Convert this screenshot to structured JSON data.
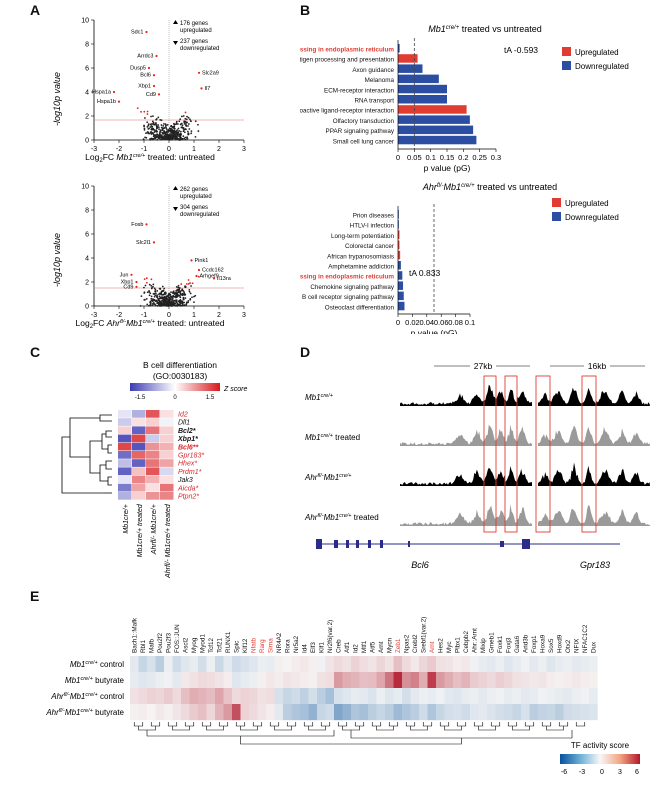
{
  "panels": {
    "A": {
      "letter": "A",
      "top": {
        "ylabel": "-log10p value",
        "xlabel_pre": "Log",
        "xlabel_sub": "2",
        "xlabel_mid": "FC ",
        "xlabel_gene": "Mb1",
        "xlabel_sup": "cre/+",
        "xlabel_post": " treated: untreated",
        "up_text": [
          "176 genes",
          "upregulated"
        ],
        "down_text": [
          "237 genes",
          "downregulated"
        ],
        "genes": [
          "Sdc1",
          "Arrdc3",
          "Dusp5",
          "Bcl6",
          "Xbp1",
          "Cd9",
          "Hspa1a",
          "Hspa1b",
          "Slc2a9",
          "Il7"
        ],
        "xticks": [
          "-3",
          "-2",
          "-1",
          "0",
          "1",
          "2",
          "3"
        ],
        "yticks": [
          "0",
          "2",
          "4",
          "6",
          "8",
          "10"
        ]
      },
      "bottom": {
        "ylabel": "-log10p value",
        "xlabel_pre": "Log",
        "xlabel_sub": "2",
        "xlabel_mid": "FC ",
        "xlabel_gene": "Ahr",
        "xlabel_sup": "fl/-",
        "xlabel_gene2": "Mb1",
        "xlabel_sup2": "cre/+",
        "xlabel_post": " treated: untreated",
        "up_text": [
          "262 genes",
          "upregulated"
        ],
        "down_text": [
          "304 genes",
          "downregulated"
        ],
        "genes": [
          "Fosb",
          "Slc2l1",
          "Xbp1",
          "Cd9",
          "Jun",
          "Pink1",
          "Ccdc162",
          "Arhgef9",
          "Il13ra"
        ],
        "xticks": [
          "-3",
          "-2",
          "-1",
          "0",
          "1",
          "2",
          "3"
        ],
        "yticks": [
          "0",
          "2",
          "4",
          "6",
          "8",
          "10"
        ]
      }
    },
    "B": {
      "letter": "B",
      "top_title_gene": "Mb1",
      "top_title_sup": "cre/+",
      "top_title_rest": " treated vs untreated",
      "bottom_title_gene": "Ahr",
      "bottom_title_sup": "fl/-",
      "bottom_title_gene2": "Mb1",
      "bottom_title_sup2": "cre/+",
      "bottom_title_rest": " treated vs untreated",
      "legend_up": "Upregulated",
      "legend_down": "Downregulated",
      "xlabel": "p value (pG)",
      "top_annotation": "tA -0.593",
      "bottom_annotation": "tA 0.833",
      "top_xticks": [
        "0",
        "0.05",
        "0.1",
        "0.15",
        "0.2",
        "0.25",
        "0.3"
      ],
      "bottom_xticks": [
        "0",
        "0.02",
        "0.04",
        "0.06",
        "0.08",
        "0.1"
      ]
    },
    "C": {
      "letter": "C",
      "title": "B cell differentiation",
      "subtitle": "(GO:0030183)",
      "zlabel": "Z score",
      "zticks": [
        "-1.5",
        "0",
        "1.5"
      ],
      "genes": [
        "Id2",
        "Dll1",
        "Bcl2*",
        "Xbp1*",
        "Bcl6**",
        "Gpr183*",
        "Hhex*",
        "Prdm1*",
        "Jak3",
        "Aicda*",
        "Ptpn2*"
      ],
      "gene_colors": [
        "#d62728",
        "#111111",
        "#111111",
        "#111111",
        "#d62728",
        "#d62728",
        "#d62728",
        "#d62728",
        "#111111",
        "#d62728",
        "#d62728"
      ],
      "gene_bold": [
        false,
        false,
        true,
        true,
        true,
        false,
        false,
        false,
        false,
        false,
        false
      ],
      "columns": [
        "Mb1cre/+",
        "Mb1cre/+ treated",
        "Ahrfl/- Mb1cre/+",
        "Ahrfl/- Mb1cre/+ treated"
      ],
      "values": [
        [
          -0.2,
          -0.6,
          1.1,
          0.2
        ],
        [
          -0.4,
          0.2,
          0.3,
          -0.1
        ],
        [
          0.3,
          -1.2,
          0.9,
          0.3
        ],
        [
          -1.3,
          1.2,
          -0.4,
          0.3
        ],
        [
          1.2,
          -1.3,
          0.7,
          0.5
        ],
        [
          -1.1,
          1.0,
          0.8,
          0.3
        ],
        [
          -0.5,
          -1.2,
          0.9,
          0.6
        ],
        [
          -1.2,
          0.4,
          1.1,
          -0.3
        ],
        [
          -0.2,
          0.8,
          0.5,
          0.2
        ],
        [
          -1.0,
          0.6,
          0.2,
          0.9
        ],
        [
          -0.6,
          0.3,
          0.7,
          0.8
        ]
      ]
    },
    "D": {
      "letter": "D",
      "scale_left": "27kb",
      "scale_right": "16kb",
      "tracks": [
        "Mb1cre/+",
        "Mb1cre/+ treated",
        "Ahrfl/- Mb1cre/+",
        "Ahrfl/- Mb1cre/+ treated"
      ],
      "gene_left": "Bcl6",
      "gene_right": "Gpr183"
    },
    "E": {
      "letter": "E",
      "rows": [
        "Mb1cre/+ control",
        "Mb1cre/+ butyrate",
        "Ahrfl/- Mb1cre/+ control",
        "Ahrfl/- Mb1cre/+ butyrate"
      ],
      "tfs": [
        "Bach1::Mafk",
        "Rbl1",
        "Mafb",
        "Pou2f2",
        "Pou2f3",
        "FOS::JUN",
        "Ascl2",
        "Myog",
        "Myod1",
        "Tcf12",
        "Tcf21",
        "RUNX1",
        "Spic",
        "Klf12",
        "Nfatb",
        "Rarg",
        "Sirna",
        "NR4A2",
        "Rora",
        "Nr5a2",
        "Id4",
        "Elf3",
        "Klf1",
        "Nr2f6(var.2)",
        "Creb",
        "Atf1",
        "Id2",
        "Mtf1",
        "Atf5",
        "Arnt",
        "Mycn",
        "Zeb1",
        "Npas2",
        "Crebl2",
        "Srebf1(var.2)",
        "Arnt",
        "Hes2",
        "Myc",
        "Plbx1",
        "Cebpb2",
        "Ahr::Arnt",
        "Mixip",
        "Gmeb1",
        "Foxk1",
        "Foxj3",
        "Gata6",
        "Arid3b",
        "Foxp1",
        "Hoxa9",
        "Sox5",
        "Hoxd9",
        "Otx2",
        "NFIX",
        "NFAC1C2",
        "Dux"
      ],
      "tf_red": [
        false,
        false,
        false,
        false,
        false,
        false,
        false,
        false,
        false,
        false,
        false,
        false,
        false,
        false,
        true,
        true,
        true,
        false,
        false,
        false,
        false,
        false,
        false,
        false,
        false,
        false,
        false,
        false,
        false,
        false,
        false,
        true,
        false,
        false,
        false,
        true,
        false,
        false,
        false,
        false,
        false,
        false,
        false,
        false,
        false,
        false,
        false,
        false,
        false,
        false,
        false,
        false,
        false,
        false,
        false
      ],
      "values": [
        [
          -0.5,
          -1.2,
          -0.8,
          -1.5,
          -0.3,
          -1.0,
          -0.6,
          -0.4,
          -0.9,
          -0.3,
          -1.1,
          -0.5,
          -1.0,
          -0.8,
          -0.6,
          -0.3,
          -0.4,
          0.2,
          0.1,
          0.3,
          0.4,
          0.2,
          -0.2,
          0.5,
          0.8,
          0.6,
          1.0,
          0.7,
          0.5,
          0.9,
          0.6,
          1.5,
          0.8,
          0.4,
          0.9,
          1.2,
          0.6,
          0.5,
          0.3,
          0.4,
          -0.2,
          -0.4,
          -0.5,
          -0.3,
          -0.6,
          -0.4,
          -0.2,
          -0.5,
          -0.3,
          -0.6,
          -0.4,
          -0.3,
          -0.5,
          -0.4,
          -0.3
        ],
        [
          -0.4,
          -0.6,
          -0.5,
          -0.3,
          -0.2,
          -0.5,
          0.4,
          0.6,
          0.8,
          0.7,
          0.5,
          0.3,
          -0.6,
          -0.4,
          -0.3,
          0.2,
          0.4,
          0.3,
          0.5,
          0.4,
          0.3,
          0.2,
          0.6,
          0.7,
          2.5,
          2.0,
          1.8,
          1.5,
          1.6,
          2.2,
          3.5,
          5.5,
          2.8,
          3.2,
          2.0,
          5.0,
          2.5,
          2.0,
          1.5,
          1.8,
          1.2,
          1.0,
          0.8,
          1.1,
          0.9,
          0.6,
          0.5,
          0.4,
          0.5,
          0.3,
          0.2,
          0.3,
          0.4,
          0.3,
          0.2
        ],
        [
          0.6,
          0.8,
          1.0,
          0.9,
          1.2,
          0.8,
          1.5,
          2.0,
          1.8,
          1.6,
          2.2,
          1.4,
          0.8,
          1.0,
          0.9,
          0.6,
          0.7,
          -0.8,
          -1.2,
          -1.0,
          -1.4,
          -0.9,
          -1.5,
          -2.0,
          -0.8,
          -0.6,
          -0.4,
          -0.5,
          -0.7,
          -0.3,
          -0.6,
          -0.4,
          -0.9,
          -0.5,
          -0.3,
          -0.4,
          -0.2,
          -0.5,
          -0.6,
          -0.4,
          -0.3,
          -0.5,
          -0.3,
          -0.2,
          -0.4,
          -0.3,
          -0.5,
          -0.4,
          -0.2,
          -0.3,
          -0.4,
          -0.5,
          -0.3,
          -0.2,
          -0.4
        ],
        [
          0.2,
          0.3,
          0.1,
          0.4,
          0.2,
          0.5,
          0.8,
          1.2,
          1.5,
          0.9,
          1.8,
          2.5,
          4.5,
          1.0,
          0.8,
          0.5,
          0.3,
          -0.5,
          -1.5,
          -1.8,
          -2.0,
          -2.5,
          -1.2,
          -1.0,
          -3.0,
          -2.5,
          -1.8,
          -2.0,
          -1.5,
          -1.2,
          -1.5,
          -2.2,
          -1.8,
          -1.5,
          -1.0,
          -1.8,
          -1.2,
          -0.9,
          -0.8,
          -1.0,
          -0.6,
          -0.5,
          -0.7,
          -0.9,
          -1.0,
          -1.2,
          -0.8,
          -1.5,
          -1.3,
          -1.2,
          -1.5,
          -1.0,
          -0.9,
          -0.8,
          -0.7
        ]
      ],
      "legend_title": "TF activity score",
      "legend_ticks": [
        "-6",
        "-3",
        "0",
        "3",
        "6"
      ]
    }
  },
  "chart_data": [
    {
      "type": "scatter",
      "title": "",
      "xlabel": "Log2FC Mb1cre/+ treated: untreated",
      "ylabel": "-log10 p value",
      "xlim": [
        -3,
        3
      ],
      "ylim": [
        0,
        10
      ],
      "labelled_points": [
        {
          "label": "Sdc1",
          "x": -0.9,
          "y": 9.0
        },
        {
          "label": "Arrdc3",
          "x": -0.5,
          "y": 7.0
        },
        {
          "label": "Dusp5",
          "x": -0.8,
          "y": 6.0
        },
        {
          "label": "Bcl6",
          "x": -0.6,
          "y": 5.4
        },
        {
          "label": "Xbp1",
          "x": -0.6,
          "y": 4.5
        },
        {
          "label": "Cd9",
          "x": -0.4,
          "y": 3.8
        },
        {
          "label": "Hspa1a",
          "x": -2.2,
          "y": 4.0
        },
        {
          "label": "Hspa1b",
          "x": -2.0,
          "y": 3.2
        },
        {
          "label": "Slc2a9",
          "x": 1.2,
          "y": 5.6
        },
        {
          "label": "Il7",
          "x": 1.3,
          "y": 4.3
        }
      ]
    },
    {
      "type": "scatter",
      "title": "",
      "xlabel": "Log2FC Ahrfl/- Mb1cre/+ treated: untreated",
      "ylabel": "-log10 p value",
      "xlim": [
        -3,
        3
      ],
      "ylim": [
        0,
        10
      ],
      "labelled_points": [
        {
          "label": "Fosb",
          "x": -0.9,
          "y": 6.8
        },
        {
          "label": "Slc2l1",
          "x": -0.6,
          "y": 5.3
        },
        {
          "label": "Pink1",
          "x": 0.9,
          "y": 3.8
        },
        {
          "label": "Ccdc162",
          "x": 1.2,
          "y": 3.0
        },
        {
          "label": "Il13ra",
          "x": 1.8,
          "y": 2.3
        },
        {
          "label": "Arhgef9",
          "x": 1.1,
          "y": 2.5
        },
        {
          "label": "Jun",
          "x": -1.5,
          "y": 2.6
        },
        {
          "label": "Xbp1",
          "x": -1.3,
          "y": 2.0
        },
        {
          "label": "Cd9",
          "x": -1.3,
          "y": 1.6
        }
      ]
    },
    {
      "type": "bar",
      "title": "Mb1cre/+ treated vs untreated",
      "xlabel": "p value (pG)",
      "xlim": [
        0,
        0.3
      ],
      "categories": [
        "Protein processing in endoplasmic reticulum",
        "Antigen processing and presentation",
        "Axon guidance",
        "Melanoma",
        "ECM-receptor interaction",
        "RNA transport",
        "Neuroactive ligand-receptor interaction",
        "Olfactory transduction",
        "PPAR signaling pathway",
        "Small cell lung cancer"
      ],
      "values": [
        0.005,
        0.06,
        0.075,
        0.125,
        0.15,
        0.15,
        0.21,
        0.22,
        0.23,
        0.24
      ],
      "direction": [
        "down",
        "up",
        "down",
        "down",
        "down",
        "down",
        "up",
        "down",
        "down",
        "down"
      ],
      "category_highlight": [
        true,
        false,
        false,
        false,
        false,
        false,
        false,
        false,
        false,
        false
      ],
      "threshold": 0.05
    },
    {
      "type": "bar",
      "title": "Ahrfl/- Mb1cre/+ treated vs untreated",
      "xlabel": "p value (pG)",
      "xlim": [
        0,
        0.1
      ],
      "categories": [
        "Prion diseases",
        "HTLV-I infection",
        "Long-term potentiation",
        "Colorectal cancer",
        "African trypanosomiasis",
        "Amphetamine addiction",
        "Protein processing in endoplasmic reticulum",
        "Chemokine signaling pathway",
        "B cell receptor signaling pathway",
        "Osteoclast differentiation"
      ],
      "values": [
        0.001,
        0.001,
        0.002,
        0.002,
        0.003,
        0.004,
        0.006,
        0.007,
        0.008,
        0.009
      ],
      "direction": [
        "down",
        "down",
        "up",
        "up",
        "up",
        "down",
        "down",
        "down",
        "down",
        "down"
      ],
      "category_highlight": [
        false,
        false,
        false,
        false,
        false,
        false,
        true,
        false,
        false,
        false
      ],
      "threshold": 0.05
    },
    {
      "type": "heatmap",
      "title": "B cell differentiation (GO:0030183)",
      "rows": [
        "Id2",
        "Dll1",
        "Bcl2*",
        "Xbp1*",
        "Bcl6**",
        "Gpr183*",
        "Hhex*",
        "Prdm1*",
        "Jak3",
        "Aicda*",
        "Ptpn2*"
      ],
      "columns": [
        "Mb1cre/+",
        "Mb1cre/+ treated",
        "Ahrfl/- Mb1cre/+",
        "Ahrfl/- Mb1cre/+ treated"
      ],
      "zlim": [
        -1.5,
        1.5
      ]
    },
    {
      "type": "heatmap",
      "title": "TF activity score",
      "zlim": [
        -6,
        6
      ]
    }
  ]
}
